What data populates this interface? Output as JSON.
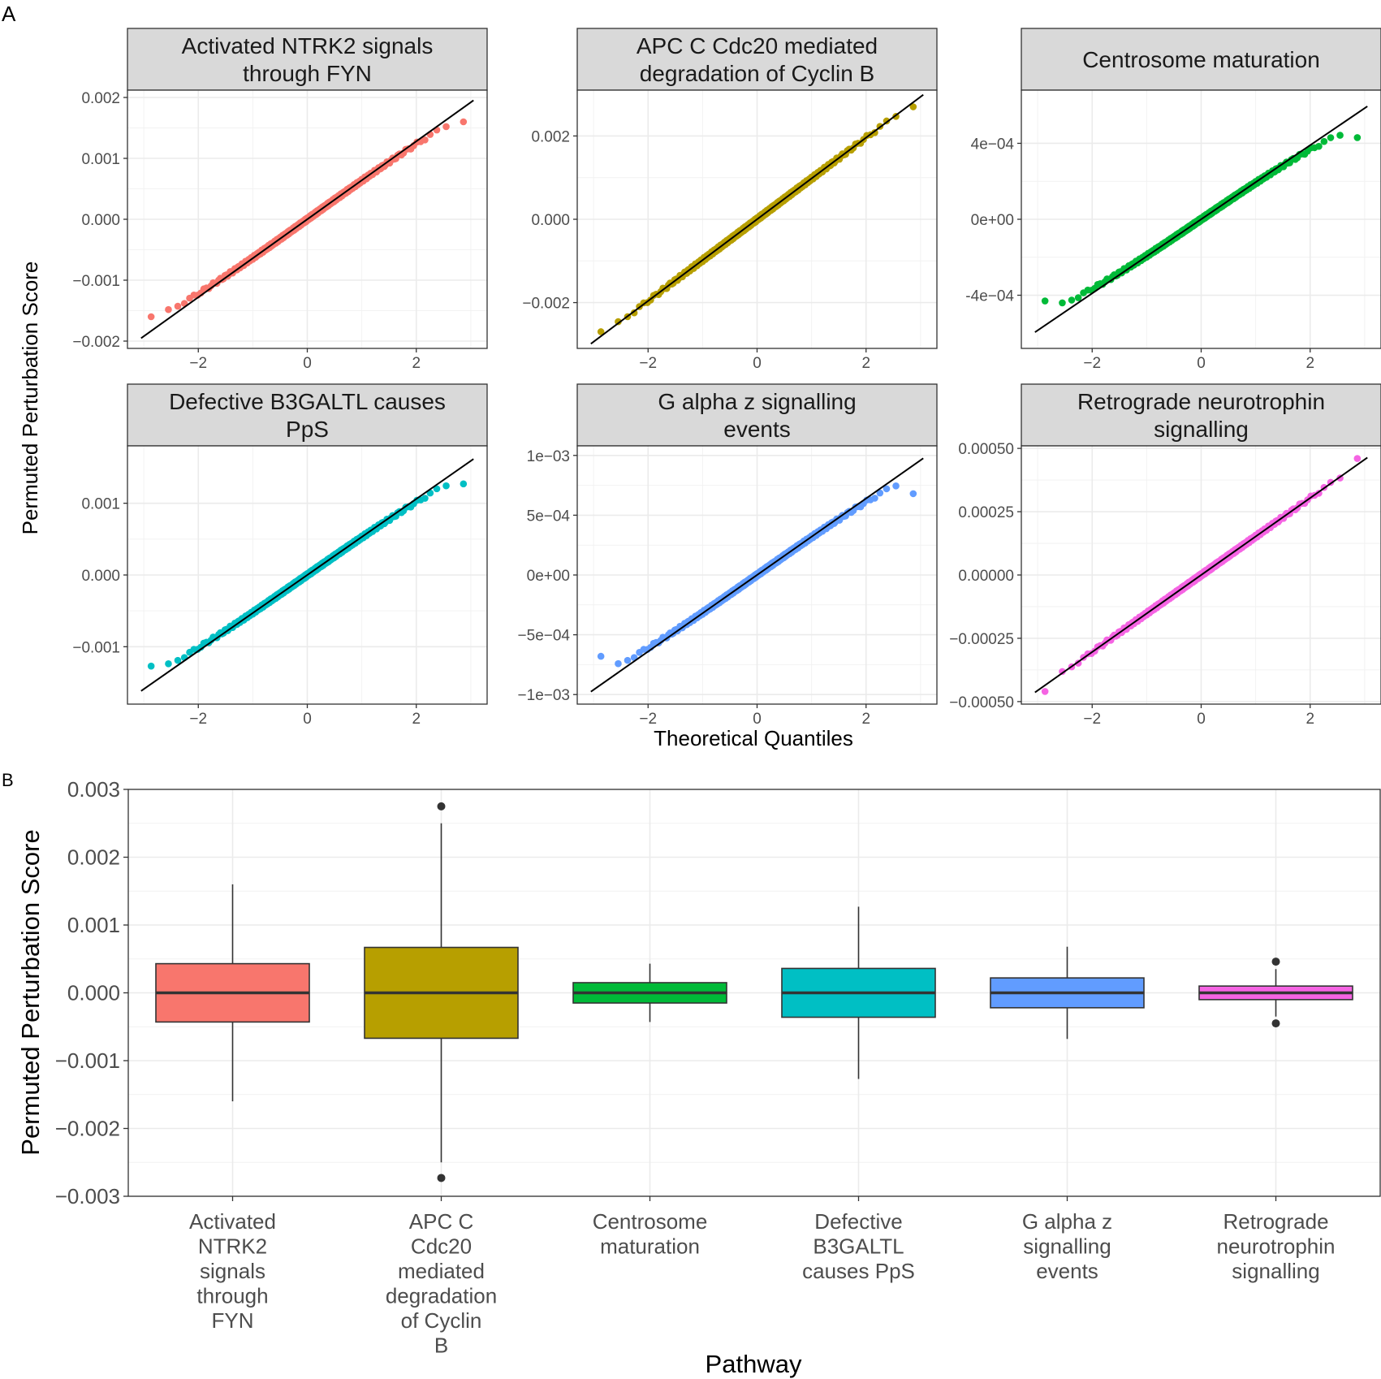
{
  "panel_labels": {
    "a": "A",
    "b": "B"
  },
  "colors": {
    "red": "#F8766D",
    "olive": "#B79F00",
    "green": "#00BA38",
    "teal": "#00BFC4",
    "blue": "#619CFF",
    "magenta": "#F564E3",
    "strip_fill": "#D9D9D9",
    "grid": "#EBEBEB"
  },
  "chart_data": [
    {
      "type": "scatter",
      "subtype": "qq-facets",
      "xlabel": "Theoretical Quantiles",
      "ylabel": "Permuted Perturbation Score",
      "x_ticks": [
        "−2",
        "0",
        "2"
      ],
      "x_tick_values": [
        -2,
        0,
        2
      ],
      "xlim": [
        -3.3,
        3.3
      ],
      "grid": true,
      "facets": [
        {
          "name": "Activated NTRK2 signals through FYN",
          "title_lines": [
            "Activated NTRK2 signals",
            "through FYN"
          ],
          "color": "#F8766D",
          "ylim": [
            -0.00212,
            0.00212
          ],
          "y_ticks": [
            -0.002,
            -0.001,
            0,
            0.001,
            0.002
          ],
          "y_tick_labels": [
            "−0.002",
            "−0.001",
            "0.000",
            "0.001",
            "0.002"
          ],
          "line": {
            "slope": 0.00064,
            "intercept": 0
          },
          "sd": 0.00064,
          "min": -0.0016,
          "max": 0.0016,
          "upper_dev": -0.00015,
          "lower_dev": 0.0002
        },
        {
          "name": "APC C Cdc20 mediated degradation of Cyclin B",
          "title_lines": [
            "APC C Cdc20 mediated",
            "degradation of Cyclin B"
          ],
          "color": "#B79F00",
          "ylim": [
            -0.0031,
            0.0031
          ],
          "y_ticks": [
            -0.002,
            0,
            0.002
          ],
          "y_tick_labels": [
            "−0.002",
            "0.000",
            "0.002"
          ],
          "line": {
            "slope": 0.00098,
            "intercept": 0
          },
          "sd": 0.00098,
          "min": -0.0027,
          "max": 0.0027,
          "upper_dev": 0,
          "lower_dev": 0
        },
        {
          "name": "Centrosome maturation",
          "title_lines": [
            "Centrosome maturation"
          ],
          "color": "#00BA38",
          "ylim": [
            -0.00068,
            0.00068
          ],
          "y_ticks": [
            -0.0004,
            0,
            0.0004
          ],
          "y_tick_labels": [
            "-4e−04",
            "0e+00",
            "4e−04"
          ],
          "line": {
            "slope": 0.000195,
            "intercept": 0
          },
          "sd": 0.000195,
          "min": -0.00043,
          "max": 0.00043,
          "upper_dev": -8e-05,
          "lower_dev": 8e-05
        },
        {
          "name": "Defective B3GALTL causes PpS",
          "title_lines": [
            "Defective B3GALTL causes",
            "PpS"
          ],
          "color": "#00BFC4",
          "ylim": [
            -0.0018,
            0.0018
          ],
          "y_ticks": [
            -0.001,
            0,
            0.001
          ],
          "y_tick_labels": [
            "−0.001",
            "0.000",
            "0.001"
          ],
          "line": {
            "slope": 0.00053,
            "intercept": 0
          },
          "sd": 0.00053,
          "min": -0.00127,
          "max": 0.00127,
          "upper_dev": -0.00015,
          "lower_dev": 0.00015
        },
        {
          "name": "G alpha z signalling events",
          "title_lines": [
            "G alpha z signalling",
            "events"
          ],
          "color": "#619CFF",
          "ylim": [
            -0.00108,
            0.00108
          ],
          "y_ticks": [
            -0.001,
            -0.0005,
            0,
            0.0005,
            0.001
          ],
          "y_tick_labels": [
            "−1e−03",
            "−5e−04",
            "0e+00",
            "5e−04",
            "1e−03"
          ],
          "line": {
            "slope": 0.00032,
            "intercept": 0
          },
          "sd": 0.00032,
          "min": -0.00068,
          "max": 0.00068,
          "upper_dev": -0.0001,
          "lower_dev": 0.0001
        },
        {
          "name": "Retrograde neurotrophin signalling",
          "title_lines": [
            "Retrograde neurotrophin",
            "signalling"
          ],
          "color": "#F564E3",
          "ylim": [
            -0.00051,
            0.00051
          ],
          "y_ticks": [
            -0.0005,
            -0.00025,
            0,
            0.00025,
            0.0005
          ],
          "y_tick_labels": [
            "−0.00050",
            "−0.00025",
            "0.00000",
            "0.00025",
            "0.00050"
          ],
          "line": {
            "slope": 0.000152,
            "intercept": 0
          },
          "sd": 0.000152,
          "min": -0.00046,
          "max": 0.00046,
          "upper_dev": 0,
          "lower_dev": 0
        }
      ]
    },
    {
      "type": "box",
      "xlabel": "Pathway",
      "ylabel": "Permuted Perturbation Score",
      "ylim": [
        -0.003,
        0.003
      ],
      "y_ticks": [
        -0.003,
        -0.002,
        -0.001,
        0,
        0.001,
        0.002,
        0.003
      ],
      "y_tick_labels": [
        "−0.003",
        "−0.002",
        "−0.001",
        "0.000",
        "0.001",
        "0.002",
        "0.003"
      ],
      "grid": true,
      "categories": [
        {
          "label_lines": [
            "Activated",
            "NTRK2",
            "signals",
            "through",
            "FYN"
          ],
          "color": "#F8766D",
          "q1": -0.00043,
          "median": 0,
          "q3": 0.00043,
          "lower_whisker": -0.0016,
          "upper_whisker": 0.0016,
          "outliers": []
        },
        {
          "label_lines": [
            "APC C",
            "Cdc20",
            "mediated",
            "degradation",
            "of Cyclin",
            "B"
          ],
          "color": "#B79F00",
          "q1": -0.00067,
          "median": 0,
          "q3": 0.00067,
          "lower_whisker": -0.0025,
          "upper_whisker": 0.0025,
          "outliers": [
            0.00275,
            -0.00273
          ]
        },
        {
          "label_lines": [
            "Centrosome",
            "maturation"
          ],
          "color": "#00BA38",
          "q1": -0.00015,
          "median": 0,
          "q3": 0.00015,
          "lower_whisker": -0.00043,
          "upper_whisker": 0.00043,
          "outliers": []
        },
        {
          "label_lines": [
            "Defective",
            "B3GALTL",
            "causes PpS"
          ],
          "color": "#00BFC4",
          "q1": -0.00036,
          "median": 0,
          "q3": 0.00036,
          "lower_whisker": -0.00127,
          "upper_whisker": 0.00127,
          "outliers": []
        },
        {
          "label_lines": [
            "G alpha z",
            "signalling",
            "events"
          ],
          "color": "#619CFF",
          "q1": -0.00022,
          "median": 0,
          "q3": 0.00022,
          "lower_whisker": -0.00068,
          "upper_whisker": 0.00068,
          "outliers": []
        },
        {
          "label_lines": [
            "Retrograde",
            "neurotrophin",
            "signalling"
          ],
          "color": "#F564E3",
          "q1": -0.0001,
          "median": 0,
          "q3": 0.0001,
          "lower_whisker": -0.00035,
          "upper_whisker": 0.00035,
          "outliers": [
            0.00046,
            -0.00045
          ]
        }
      ]
    }
  ]
}
